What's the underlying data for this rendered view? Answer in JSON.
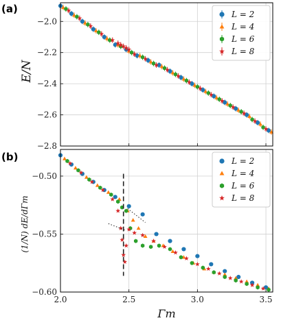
{
  "chart_data": [
    {
      "panel_label": "(a)",
      "type": "scatter",
      "ylabel": "E/N",
      "xlim": [
        2.0,
        3.55
      ],
      "ylim": [
        -2.8,
        -1.88
      ],
      "xticks": [
        2.0,
        2.5,
        3.0,
        3.5
      ],
      "yticks": [
        -2.0,
        -2.2,
        -2.4,
        -2.6,
        -2.8
      ],
      "ytick_labels": [
        "−2.0",
        "−2.2",
        "−2.4",
        "−2.6",
        "−2.8"
      ],
      "grid": true,
      "legend_position": "top-right",
      "series": [
        {
          "name": "L = 2",
          "marker": "circle-errorbar",
          "color": "#1f77b4",
          "x": [
            2.0,
            2.08,
            2.16,
            2.24,
            2.32,
            2.4,
            2.48,
            2.56,
            2.64,
            2.72,
            2.8,
            2.88,
            2.96,
            3.04,
            3.12,
            3.2,
            3.28,
            3.36,
            3.44,
            3.52
          ],
          "y": [
            -1.9,
            -1.95,
            -2.0,
            -2.05,
            -2.1,
            -2.15,
            -2.18,
            -2.22,
            -2.25,
            -2.28,
            -2.32,
            -2.36,
            -2.4,
            -2.44,
            -2.48,
            -2.52,
            -2.56,
            -2.6,
            -2.65,
            -2.7
          ]
        },
        {
          "name": "L = 4",
          "marker": "triangle-errorbar",
          "color": "#ff7f0e",
          "x": [
            2.02,
            2.1,
            2.18,
            2.26,
            2.34,
            2.42,
            2.5,
            2.58,
            2.66,
            2.74,
            2.82,
            2.9,
            2.98,
            3.06,
            3.14,
            3.22,
            3.3,
            3.38,
            3.46,
            3.54
          ],
          "y": [
            -1.91,
            -1.96,
            -2.01,
            -2.06,
            -2.11,
            -2.15,
            -2.19,
            -2.22,
            -2.26,
            -2.29,
            -2.33,
            -2.37,
            -2.41,
            -2.45,
            -2.49,
            -2.53,
            -2.57,
            -2.61,
            -2.66,
            -2.71
          ]
        },
        {
          "name": "L = 6",
          "marker": "hexagon-errorbar",
          "color": "#2ca02c",
          "x": [
            2.04,
            2.12,
            2.2,
            2.28,
            2.36,
            2.44,
            2.52,
            2.6,
            2.68,
            2.76,
            2.84,
            2.92,
            3.0,
            3.08,
            3.16,
            3.24,
            3.32,
            3.4,
            3.48
          ],
          "y": [
            -1.92,
            -1.97,
            -2.02,
            -2.07,
            -2.12,
            -2.16,
            -2.2,
            -2.23,
            -2.27,
            -2.3,
            -2.34,
            -2.38,
            -2.42,
            -2.46,
            -2.5,
            -2.54,
            -2.58,
            -2.63,
            -2.68
          ]
        },
        {
          "name": "L = 8",
          "marker": "star-errorbar",
          "color": "#d62728",
          "x": [
            2.06,
            2.14,
            2.22,
            2.3,
            2.38,
            2.42,
            2.44,
            2.46,
            2.48,
            2.5,
            2.54,
            2.62,
            2.7,
            2.78,
            2.86,
            2.94,
            3.02,
            3.1,
            3.18,
            3.26,
            3.34,
            3.42,
            3.5
          ],
          "y": [
            -1.93,
            -1.98,
            -2.03,
            -2.08,
            -2.12,
            -2.14,
            -2.15,
            -2.16,
            -2.17,
            -2.18,
            -2.21,
            -2.24,
            -2.28,
            -2.31,
            -2.35,
            -2.39,
            -2.43,
            -2.47,
            -2.51,
            -2.55,
            -2.59,
            -2.64,
            -2.69
          ]
        }
      ]
    },
    {
      "panel_label": "(b)",
      "type": "scatter",
      "xlabel": "Γm",
      "ylabel": "(1/N) dE/dΓm",
      "xlim": [
        2.0,
        3.55
      ],
      "ylim": [
        -0.6,
        -0.477
      ],
      "xticks": [
        2.0,
        2.5,
        3.0,
        3.5
      ],
      "xtick_labels": [
        "2.0",
        "2.5",
        "3.0",
        "3.5"
      ],
      "yticks": [
        -0.5,
        -0.55,
        -0.6
      ],
      "ytick_labels": [
        "−0.50",
        "−0.55",
        "−0.60"
      ],
      "grid": true,
      "legend_position": "top-right",
      "vline_x": 2.46,
      "series": [
        {
          "name": "L = 2",
          "marker": "circle",
          "color": "#1f77b4",
          "x": [
            2.0,
            2.08,
            2.16,
            2.24,
            2.32,
            2.4,
            2.5,
            2.6,
            2.7,
            2.8,
            2.9,
            3.0,
            3.1,
            3.2,
            3.3,
            3.4,
            3.5
          ],
          "y": [
            -0.482,
            -0.49,
            -0.498,
            -0.505,
            -0.512,
            -0.518,
            -0.526,
            -0.533,
            -0.55,
            -0.556,
            -0.563,
            -0.569,
            -0.576,
            -0.582,
            -0.587,
            -0.592,
            -0.596
          ]
        },
        {
          "name": "L = 4",
          "marker": "triangle",
          "color": "#ff7f0e",
          "x": [
            2.03,
            2.11,
            2.19,
            2.27,
            2.35,
            2.43,
            2.49,
            2.53,
            2.57,
            2.62,
            2.68,
            2.75,
            2.82,
            2.9,
            2.97,
            3.05,
            3.12,
            3.2,
            3.28,
            3.36,
            3.44,
            3.52
          ],
          "y": [
            -0.485,
            -0.493,
            -0.501,
            -0.508,
            -0.514,
            -0.52,
            -0.53,
            -0.538,
            -0.545,
            -0.552,
            -0.556,
            -0.56,
            -0.565,
            -0.57,
            -0.575,
            -0.58,
            -0.583,
            -0.585,
            -0.588,
            -0.591,
            -0.594,
            -0.597
          ]
        },
        {
          "name": "L = 6",
          "marker": "hexagon",
          "color": "#2ca02c",
          "x": [
            2.05,
            2.13,
            2.21,
            2.29,
            2.37,
            2.42,
            2.45,
            2.48,
            2.51,
            2.55,
            2.6,
            2.66,
            2.72,
            2.8,
            2.88,
            2.96,
            3.04,
            3.12,
            3.2,
            3.28,
            3.36,
            3.44,
            3.52
          ],
          "y": [
            -0.487,
            -0.495,
            -0.503,
            -0.51,
            -0.516,
            -0.522,
            -0.527,
            -0.53,
            -0.545,
            -0.556,
            -0.56,
            -0.561,
            -0.56,
            -0.563,
            -0.57,
            -0.575,
            -0.579,
            -0.583,
            -0.587,
            -0.59,
            -0.593,
            -0.596,
            -0.598
          ]
        },
        {
          "name": "L = 8",
          "marker": "star",
          "color": "#d62728",
          "x": [
            2.07,
            2.15,
            2.23,
            2.31,
            2.38,
            2.42,
            2.44,
            2.45,
            2.46,
            2.47,
            2.48,
            2.5,
            2.54,
            2.6,
            2.68,
            2.76,
            2.84,
            2.92,
            3.0,
            3.08,
            3.16,
            3.24,
            3.32,
            3.4,
            3.48
          ],
          "y": [
            -0.489,
            -0.497,
            -0.505,
            -0.512,
            -0.52,
            -0.53,
            -0.545,
            -0.555,
            -0.568,
            -0.574,
            -0.56,
            -0.546,
            -0.549,
            -0.551,
            -0.556,
            -0.561,
            -0.566,
            -0.571,
            -0.576,
            -0.58,
            -0.584,
            -0.588,
            -0.591,
            -0.594,
            -0.597
          ]
        }
      ]
    }
  ]
}
